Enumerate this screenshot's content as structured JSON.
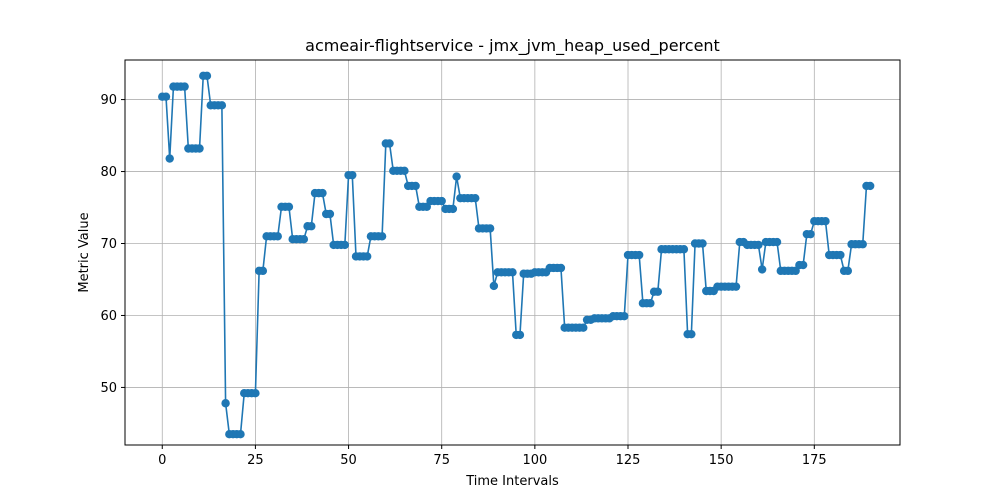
{
  "chart_data": {
    "type": "line",
    "title": "acmeair-flightservice - jmx_jvm_heap_used_percent",
    "xlabel": "Time Intervals",
    "ylabel": "Metric Value",
    "xlim": [
      -10,
      198
    ],
    "ylim": [
      42,
      95.5
    ],
    "xticks": [
      0,
      25,
      50,
      75,
      100,
      125,
      150,
      175
    ],
    "yticks": [
      50,
      60,
      70,
      80,
      90
    ],
    "grid": true,
    "colors": {
      "series": "#1f77b4",
      "grid": "#b0b0b0",
      "axes": "#000000"
    },
    "series": [
      {
        "marker": "circle",
        "values": [
          90.4,
          90.4,
          81.8,
          91.8,
          91.8,
          91.8,
          91.8,
          83.2,
          83.2,
          83.2,
          83.2,
          93.3,
          93.3,
          89.2,
          89.2,
          89.2,
          89.2,
          47.8,
          43.5,
          43.5,
          43.5,
          43.5,
          49.2,
          49.2,
          49.2,
          49.2,
          66.2,
          66.2,
          71.0,
          71.0,
          71.0,
          71.0,
          75.1,
          75.1,
          75.1,
          70.6,
          70.6,
          70.6,
          70.6,
          72.4,
          72.4,
          77.0,
          77.0,
          77.0,
          74.1,
          74.1,
          69.8,
          69.8,
          69.8,
          69.8,
          79.5,
          79.5,
          68.2,
          68.2,
          68.2,
          68.2,
          71.0,
          71.0,
          71.0,
          71.0,
          83.9,
          83.9,
          80.1,
          80.1,
          80.1,
          80.1,
          78.0,
          78.0,
          78.0,
          75.1,
          75.1,
          75.1,
          75.9,
          75.9,
          75.9,
          75.9,
          74.8,
          74.8,
          74.8,
          79.3,
          76.3,
          76.3,
          76.3,
          76.3,
          76.3,
          72.1,
          72.1,
          72.1,
          72.1,
          64.1,
          66.0,
          66.0,
          66.0,
          66.0,
          66.0,
          57.3,
          57.3,
          65.8,
          65.8,
          65.8,
          66.0,
          66.0,
          66.0,
          66.0,
          66.6,
          66.6,
          66.6,
          66.6,
          58.3,
          58.3,
          58.3,
          58.3,
          58.3,
          58.3,
          59.4,
          59.4,
          59.6,
          59.6,
          59.6,
          59.6,
          59.6,
          59.9,
          59.9,
          59.9,
          59.9,
          68.4,
          68.4,
          68.4,
          68.4,
          61.7,
          61.7,
          61.7,
          63.3,
          63.3,
          69.2,
          69.2,
          69.2,
          69.2,
          69.2,
          69.2,
          69.2,
          57.4,
          57.4,
          70.0,
          70.0,
          70.0,
          63.4,
          63.4,
          63.4,
          64.0,
          64.0,
          64.0,
          64.0,
          64.0,
          64.0,
          70.2,
          70.2,
          69.8,
          69.8,
          69.8,
          69.8,
          66.4,
          70.2,
          70.2,
          70.2,
          70.2,
          66.2,
          66.2,
          66.2,
          66.2,
          66.2,
          67.0,
          67.0,
          71.3,
          71.3,
          73.1,
          73.1,
          73.1,
          73.1,
          68.4,
          68.4,
          68.4,
          68.4,
          66.2,
          66.2,
          69.9,
          69.9,
          69.9,
          69.9,
          78.0,
          78.0
        ]
      }
    ]
  }
}
